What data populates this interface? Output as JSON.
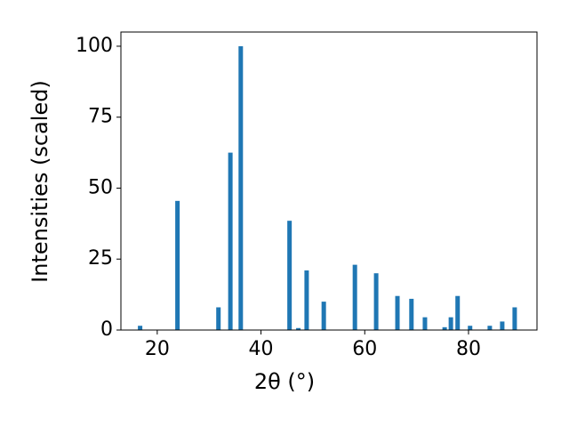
{
  "chart_data": {
    "type": "bar",
    "xlabel": "2θ (°)",
    "ylabel": "Intensities (scaled)",
    "color": "#1f77b4",
    "x": [
      16.7,
      23.9,
      31.8,
      34.1,
      36.1,
      45.5,
      47.2,
      48.8,
      52.1,
      58.1,
      62.2,
      66.3,
      69.0,
      71.6,
      75.4,
      76.6,
      77.9,
      80.3,
      84.1,
      86.5,
      88.9
    ],
    "values": [
      1.5,
      45.5,
      8,
      62.5,
      100,
      38.5,
      0.7,
      21,
      10,
      23,
      20,
      12,
      11,
      4.5,
      1,
      4.5,
      12,
      1.5,
      1.5,
      3,
      8
    ],
    "xlim": [
      13,
      93.2
    ],
    "ylim": [
      0,
      105
    ],
    "xticks": [
      20,
      40,
      60,
      80
    ],
    "yticks": [
      0,
      25,
      50,
      75,
      100
    ],
    "grid": false
  }
}
